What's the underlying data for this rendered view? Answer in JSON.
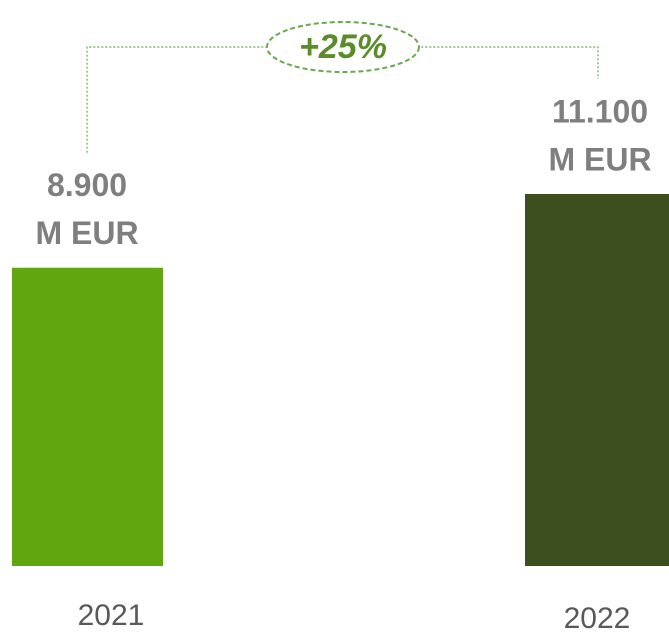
{
  "chart_data": {
    "type": "bar",
    "categories": [
      "2021",
      "2022"
    ],
    "values": [
      8900,
      11100
    ],
    "value_labels": [
      [
        "8.900",
        "M EUR"
      ],
      [
        "11.100",
        "M EUR"
      ]
    ],
    "colors": [
      "#62a60f",
      "#3d4e1f"
    ],
    "annotation": "+25%"
  }
}
